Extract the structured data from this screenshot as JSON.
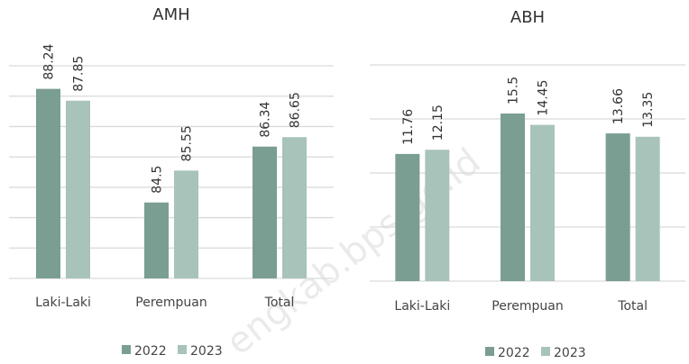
{
  "chart_data": [
    {
      "type": "bar",
      "title": "AMH",
      "categories": [
        "Laki-Laki",
        "Perempuan",
        "Total"
      ],
      "series": [
        {
          "name": "2022",
          "color": "#7a9e91",
          "values": [
            88.24,
            84.5,
            86.34
          ]
        },
        {
          "name": "2023",
          "color": "#a8c3b9",
          "values": [
            87.85,
            85.55,
            86.65
          ]
        }
      ],
      "ylim": [
        82,
        89
      ],
      "yticks": [
        82,
        83,
        84,
        85,
        86,
        87,
        88,
        89
      ],
      "grid": true,
      "tick_labels": false,
      "legend": "bottom"
    },
    {
      "type": "bar",
      "title": "ABH",
      "categories": [
        "Laki-Laki",
        "Perempuan",
        "Total"
      ],
      "series": [
        {
          "name": "2022",
          "color": "#7a9e91",
          "values": [
            11.76,
            15.5,
            13.66
          ]
        },
        {
          "name": "2023",
          "color": "#a8c3b9",
          "values": [
            12.15,
            14.45,
            13.35
          ]
        }
      ],
      "ylim": [
        0,
        20
      ],
      "yticks": [
        0,
        5,
        10,
        15,
        20
      ],
      "grid": true,
      "tick_labels": false,
      "legend": "bottom"
    }
  ],
  "watermark": "engkab.bps.go.id"
}
